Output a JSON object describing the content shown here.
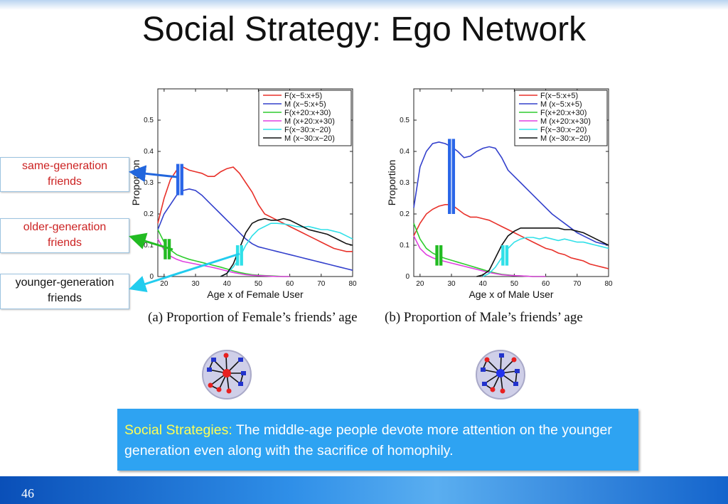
{
  "slide": {
    "title": "Social Strategy: Ego Network",
    "page_number": "46"
  },
  "callouts": [
    {
      "lines": [
        "same-generation",
        "friends"
      ],
      "color": "#cc2222",
      "arrow_color": "#2266dd"
    },
    {
      "lines": [
        "older-generation",
        "friends"
      ],
      "color": "#cc2222",
      "arrow_color": "#22bb22"
    },
    {
      "lines": [
        "younger-generation",
        "friends"
      ],
      "color": "#111111",
      "arrow_color": "#22ccee"
    }
  ],
  "captions": {
    "a": "(a)  Proportion of Female’s friends’ age",
    "b": "(b)  Proportion of Male’s friends’ age"
  },
  "info_box": {
    "highlight": "Social Strategies:",
    "text": " The middle-age people devote more attention on the younger generation even along with the sacrifice of homophily."
  },
  "series_colors": {
    "F(x-5:x+5)": "#e8312a",
    "M (x-5:x+5)": "#3340cc",
    "F(x+20:x+30)": "#2ecc2e",
    "M (x+20:x+30)": "#e040e0",
    "F(x-30:x-20)": "#30e0e8",
    "M (x-30:x-20)": "#111111"
  },
  "chart_data": [
    {
      "type": "line",
      "title": "",
      "xlabel": "Age x of Female User",
      "ylabel": "Proportion",
      "xlim": [
        18,
        80
      ],
      "ylim": [
        0,
        0.6
      ],
      "xticks": [
        20,
        30,
        40,
        50,
        60,
        70,
        80
      ],
      "yticks": [
        0,
        0.1,
        0.2,
        0.3,
        0.4,
        0.5
      ],
      "ytick_labels": [
        "0",
        "0.1",
        "0.2",
        "0.3",
        "0.4",
        "0.5"
      ],
      "legend_position": "top-right",
      "series": [
        {
          "name": "F(x−5:x+5)",
          "color": "#e8312a",
          "x": [
            18,
            20,
            22,
            24,
            26,
            28,
            30,
            32,
            34,
            36,
            38,
            40,
            42,
            44,
            46,
            48,
            50,
            52,
            54,
            56,
            58,
            60,
            62,
            64,
            66,
            68,
            70,
            72,
            74,
            76,
            78,
            80
          ],
          "values": [
            0.17,
            0.25,
            0.31,
            0.34,
            0.35,
            0.34,
            0.335,
            0.33,
            0.32,
            0.32,
            0.335,
            0.345,
            0.35,
            0.33,
            0.3,
            0.27,
            0.23,
            0.2,
            0.19,
            0.18,
            0.17,
            0.16,
            0.15,
            0.14,
            0.13,
            0.12,
            0.11,
            0.1,
            0.09,
            0.085,
            0.08,
            0.08
          ]
        },
        {
          "name": "M (x−5:x+5)",
          "color": "#3340cc",
          "x": [
            18,
            20,
            22,
            24,
            26,
            28,
            30,
            32,
            34,
            36,
            38,
            40,
            42,
            44,
            46,
            48,
            50,
            52,
            54,
            56,
            58,
            60,
            62,
            64,
            66,
            68,
            70,
            72,
            74,
            76,
            78,
            80
          ],
          "values": [
            0.15,
            0.2,
            0.23,
            0.26,
            0.275,
            0.28,
            0.275,
            0.26,
            0.24,
            0.22,
            0.2,
            0.18,
            0.16,
            0.14,
            0.12,
            0.105,
            0.095,
            0.09,
            0.085,
            0.08,
            0.075,
            0.07,
            0.065,
            0.06,
            0.055,
            0.05,
            0.045,
            0.04,
            0.035,
            0.03,
            0.025,
            0.02
          ]
        },
        {
          "name": "F(x+20:x+30)",
          "color": "#2ecc2e",
          "x": [
            18,
            20,
            22,
            24,
            26,
            28,
            30,
            32,
            34,
            36,
            38,
            40,
            42,
            44,
            46,
            48,
            50,
            52,
            54,
            56,
            58,
            60
          ],
          "values": [
            0.15,
            0.11,
            0.085,
            0.07,
            0.062,
            0.055,
            0.05,
            0.045,
            0.04,
            0.035,
            0.03,
            0.024,
            0.018,
            0.013,
            0.009,
            0.006,
            0.004,
            0.003,
            0.002,
            0.001,
            0.0,
            0.0
          ]
        },
        {
          "name": "M (x+20:x+30)",
          "color": "#e040e0",
          "x": [
            18,
            20,
            22,
            24,
            26,
            28,
            30,
            32,
            34,
            36,
            38,
            40,
            42,
            44,
            46,
            48,
            50,
            52,
            54,
            56,
            58,
            60
          ],
          "values": [
            0.12,
            0.085,
            0.065,
            0.055,
            0.048,
            0.044,
            0.04,
            0.036,
            0.032,
            0.028,
            0.023,
            0.018,
            0.013,
            0.009,
            0.006,
            0.004,
            0.003,
            0.002,
            0.001,
            0.0,
            0.0,
            0.0
          ]
        },
        {
          "name": "F(x−30:x−20)",
          "color": "#30e0e8",
          "x": [
            38,
            40,
            42,
            44,
            46,
            48,
            50,
            52,
            54,
            56,
            58,
            60,
            62,
            64,
            66,
            68,
            70,
            72,
            74,
            76,
            78,
            80
          ],
          "values": [
            0.0,
            0.01,
            0.03,
            0.06,
            0.1,
            0.13,
            0.15,
            0.16,
            0.17,
            0.17,
            0.168,
            0.165,
            0.16,
            0.158,
            0.16,
            0.155,
            0.15,
            0.15,
            0.145,
            0.14,
            0.13,
            0.12
          ]
        },
        {
          "name": "M (x−30:x−20)",
          "color": "#111111",
          "x": [
            38,
            40,
            42,
            44,
            46,
            48,
            50,
            52,
            54,
            56,
            58,
            60,
            62,
            64,
            66,
            68,
            70,
            72,
            74,
            76,
            78,
            80
          ],
          "values": [
            0.0,
            0.01,
            0.04,
            0.09,
            0.14,
            0.17,
            0.18,
            0.185,
            0.18,
            0.18,
            0.185,
            0.18,
            0.17,
            0.16,
            0.15,
            0.145,
            0.14,
            0.135,
            0.125,
            0.115,
            0.105,
            0.1
          ]
        }
      ]
    },
    {
      "type": "line",
      "title": "",
      "xlabel": "Age x of Male User",
      "ylabel": "Proportion",
      "xlim": [
        18,
        80
      ],
      "ylim": [
        0,
        0.6
      ],
      "xticks": [
        20,
        30,
        40,
        50,
        60,
        70,
        80
      ],
      "yticks": [
        0,
        0.1,
        0.2,
        0.3,
        0.4,
        0.5
      ],
      "ytick_labels": [
        "0",
        "0.1",
        "0.2",
        "0.3",
        "0.4",
        "0.5"
      ],
      "legend_position": "top-right",
      "series": [
        {
          "name": "F(x−5:x+5)",
          "color": "#e8312a",
          "x": [
            18,
            20,
            22,
            24,
            26,
            28,
            30,
            32,
            34,
            36,
            38,
            40,
            42,
            44,
            46,
            48,
            50,
            52,
            54,
            56,
            58,
            60,
            62,
            64,
            66,
            68,
            70,
            72,
            74,
            76,
            78,
            80
          ],
          "values": [
            0.13,
            0.17,
            0.2,
            0.215,
            0.225,
            0.23,
            0.23,
            0.215,
            0.2,
            0.19,
            0.19,
            0.185,
            0.18,
            0.17,
            0.16,
            0.15,
            0.14,
            0.13,
            0.12,
            0.11,
            0.1,
            0.09,
            0.085,
            0.075,
            0.07,
            0.06,
            0.055,
            0.05,
            0.04,
            0.035,
            0.03,
            0.025
          ]
        },
        {
          "name": "M (x−5:x+5)",
          "color": "#3340cc",
          "x": [
            18,
            20,
            22,
            24,
            26,
            28,
            30,
            32,
            34,
            36,
            38,
            40,
            42,
            44,
            46,
            48,
            50,
            52,
            54,
            56,
            58,
            60,
            62,
            64,
            66,
            68,
            70,
            72,
            74,
            76,
            78,
            80
          ],
          "values": [
            0.22,
            0.35,
            0.4,
            0.425,
            0.43,
            0.425,
            0.415,
            0.4,
            0.38,
            0.385,
            0.4,
            0.41,
            0.415,
            0.41,
            0.38,
            0.34,
            0.32,
            0.3,
            0.28,
            0.26,
            0.24,
            0.22,
            0.2,
            0.185,
            0.17,
            0.155,
            0.14,
            0.13,
            0.12,
            0.11,
            0.105,
            0.1
          ]
        },
        {
          "name": "F(x+20:x+30)",
          "color": "#2ecc2e",
          "x": [
            18,
            20,
            22,
            24,
            26,
            28,
            30,
            32,
            34,
            36,
            38,
            40,
            42,
            44,
            46,
            48,
            50,
            52,
            54,
            56,
            58,
            60
          ],
          "values": [
            0.17,
            0.12,
            0.09,
            0.075,
            0.065,
            0.058,
            0.052,
            0.046,
            0.04,
            0.034,
            0.028,
            0.022,
            0.016,
            0.011,
            0.007,
            0.005,
            0.003,
            0.002,
            0.001,
            0.0,
            0.0,
            0.0
          ]
        },
        {
          "name": "M (x+20:x+30)",
          "color": "#e040e0",
          "x": [
            18,
            20,
            22,
            24,
            26,
            28,
            30,
            32,
            34,
            36,
            38,
            40,
            42,
            44,
            46,
            48,
            50,
            52,
            54,
            56,
            58,
            60
          ],
          "values": [
            0.13,
            0.09,
            0.07,
            0.06,
            0.053,
            0.048,
            0.043,
            0.038,
            0.033,
            0.028,
            0.023,
            0.018,
            0.013,
            0.009,
            0.006,
            0.004,
            0.003,
            0.002,
            0.001,
            0.0,
            0.0,
            0.0
          ]
        },
        {
          "name": "F(x−30:x−20)",
          "color": "#30e0e8",
          "x": [
            40,
            42,
            44,
            46,
            48,
            50,
            52,
            54,
            56,
            58,
            60,
            62,
            64,
            66,
            68,
            70,
            72,
            74,
            76,
            78,
            80
          ],
          "values": [
            0.0,
            0.01,
            0.03,
            0.06,
            0.09,
            0.11,
            0.12,
            0.125,
            0.125,
            0.12,
            0.125,
            0.12,
            0.115,
            0.12,
            0.115,
            0.11,
            0.11,
            0.105,
            0.1,
            0.095,
            0.09
          ]
        },
        {
          "name": "M (x−30:x−20)",
          "color": "#111111",
          "x": [
            38,
            40,
            42,
            44,
            46,
            48,
            50,
            52,
            54,
            56,
            58,
            60,
            62,
            64,
            66,
            68,
            70,
            72,
            74,
            76,
            78,
            80
          ],
          "values": [
            0.0,
            0.005,
            0.02,
            0.06,
            0.1,
            0.13,
            0.145,
            0.155,
            0.155,
            0.155,
            0.155,
            0.155,
            0.155,
            0.155,
            0.15,
            0.15,
            0.145,
            0.14,
            0.13,
            0.12,
            0.11,
            0.1
          ]
        }
      ]
    }
  ]
}
